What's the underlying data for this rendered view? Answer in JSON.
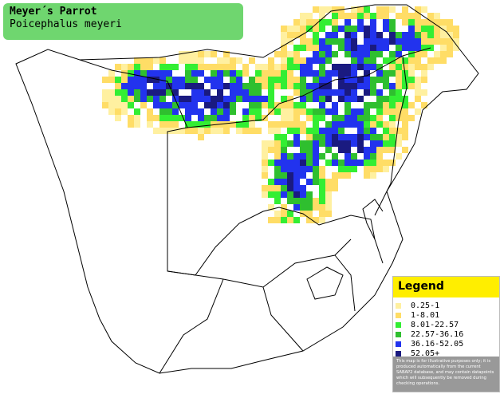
{
  "header": {
    "title": "Meyer´s Parrot",
    "subtitle": "Poicephalus meyeri"
  },
  "legend": {
    "title": "Legend",
    "items": [
      {
        "label": "0.25-1",
        "color": "#fff0a0"
      },
      {
        "label": "1-8.01",
        "color": "#ffdd66"
      },
      {
        "label": "8.01-22.57",
        "color": "#33ee33"
      },
      {
        "label": "22.57-36.16",
        "color": "#2fbf2f"
      },
      {
        "label": "36.16-52.05",
        "color": "#2233ee"
      },
      {
        "label": "52.05+",
        "color": "#1a1a80"
      }
    ],
    "disclaimer": "This map is for illustrative purposes only; it is produced automatically from the current SABAP2 database, and may contain datapoints which will subsequently be removed during checking operations."
  }
}
